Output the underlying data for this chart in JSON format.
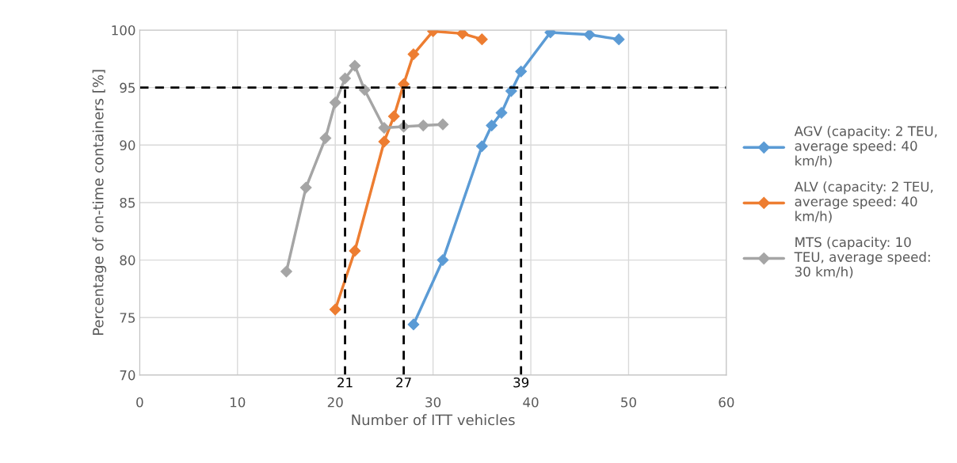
{
  "chart_data": {
    "type": "line",
    "xlabel": "Number of ITT vehicles",
    "ylabel": "Percentage of on-time containers [%]",
    "xlim": [
      0,
      60
    ],
    "xticks": [
      0,
      10,
      20,
      30,
      40,
      50,
      60
    ],
    "ylim": [
      70,
      100
    ],
    "yticks": [
      70,
      75,
      80,
      85,
      90,
      95,
      100
    ],
    "grid": true,
    "legend": "right",
    "marker": "diamond",
    "line_style": "solid",
    "series": [
      {
        "name": "AGV (capacity: 2 TEU,\naverage speed: 40\nkm/h)",
        "color": "#5b9bd5",
        "x": [
          28,
          31,
          35,
          36,
          37,
          38,
          39,
          42,
          46,
          49
        ],
        "values": [
          74.4,
          80.0,
          89.9,
          91.7,
          92.8,
          94.7,
          96.4,
          99.8,
          99.6,
          99.2
        ]
      },
      {
        "name": "ALV (capacity: 2 TEU,\naverage speed: 40\nkm/h)",
        "color": "#ed7d31",
        "x": [
          20,
          22,
          25,
          26,
          27,
          28,
          30,
          33,
          35
        ],
        "values": [
          75.7,
          80.8,
          90.3,
          92.5,
          95.3,
          97.9,
          99.9,
          99.7,
          99.2
        ]
      },
      {
        "name": "MTS (capacity: 10\nTEU, average speed:\n30 km/h)",
        "color": "#a5a5a5",
        "x": [
          15,
          17,
          19,
          20,
          21,
          22,
          23,
          25,
          27,
          29,
          31
        ],
        "values": [
          79.0,
          86.3,
          90.6,
          93.7,
          95.8,
          96.9,
          94.8,
          91.5,
          91.6,
          91.7,
          91.8
        ]
      }
    ],
    "ref_lines": [
      {
        "axis": "y",
        "value": 95,
        "color": "#000000",
        "line_style": "dashed"
      },
      {
        "axis": "x",
        "value": 21,
        "label": "21",
        "color": "#000000",
        "line_style": "dashed"
      },
      {
        "axis": "x",
        "value": 27,
        "label": "27",
        "color": "#000000",
        "line_style": "dashed"
      },
      {
        "axis": "x",
        "value": 39,
        "label": "39",
        "color": "#000000",
        "line_style": "dashed"
      }
    ]
  }
}
